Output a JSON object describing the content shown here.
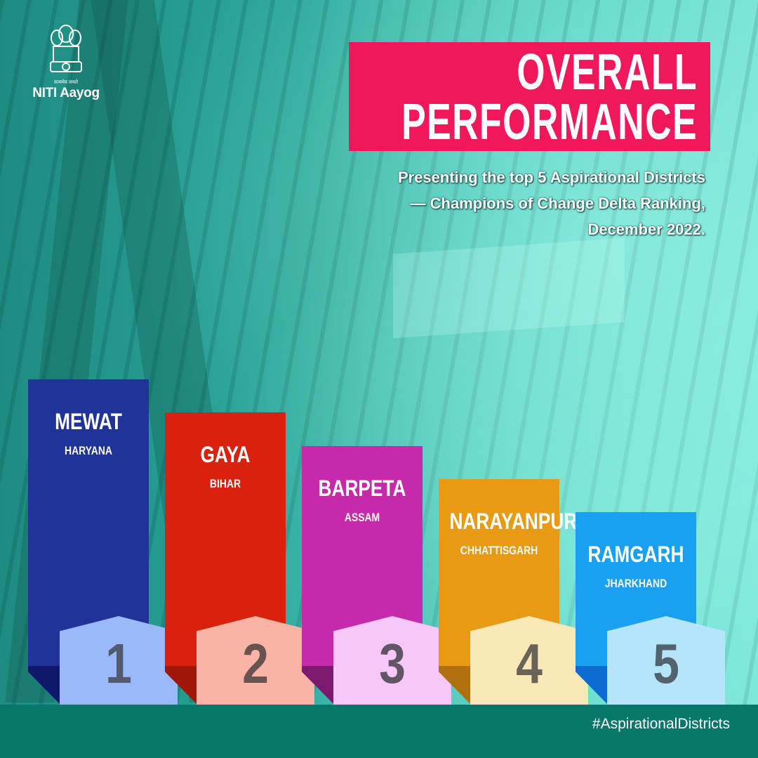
{
  "logo": {
    "motto": "सत्यमेव जयते",
    "name": "NITI Aayog"
  },
  "title": {
    "line1": "OVERALL",
    "line2": "PERFORMANCE",
    "bg_color": "#f0175a"
  },
  "subtitle": {
    "line1": "Presenting the top 5 Aspirational Districts",
    "line2": "— Champions of Change Delta Ranking,",
    "line3": "December 2022."
  },
  "ranking": [
    {
      "rank": "1",
      "district": "MEWAT",
      "state": "HARYANA",
      "bar_color": "#1f3399",
      "fold_color": "#0d1a6b",
      "badge_color": "#9bb9f8",
      "number_color": "#525a70"
    },
    {
      "rank": "2",
      "district": "GAYA",
      "state": "BIHAR",
      "bar_color": "#d9220e",
      "fold_color": "#a01608",
      "badge_color": "#f9b4a6",
      "number_color": "#6a5250"
    },
    {
      "rank": "3",
      "district": "BARPETA",
      "state": "ASSAM",
      "bar_color": "#c62aab",
      "fold_color": "#7d1a70",
      "badge_color": "#f6c8f8",
      "number_color": "#5f5565"
    },
    {
      "rank": "4",
      "district": "NARAYANPUR",
      "state": "CHHATTISGARH",
      "bar_color": "#e99a14",
      "fold_color": "#b0700c",
      "badge_color": "#fbe8b8",
      "number_color": "#6a6358"
    },
    {
      "rank": "5",
      "district": "RAMGARH",
      "state": "JHARKHAND",
      "bar_color": "#1aa0f0",
      "fold_color": "#0a6cd0",
      "badge_color": "#b5e5fb",
      "number_color": "#52636e"
    }
  ],
  "footer": {
    "hashtag": "#AspirationalDistricts",
    "bg_color": "#07776c"
  }
}
